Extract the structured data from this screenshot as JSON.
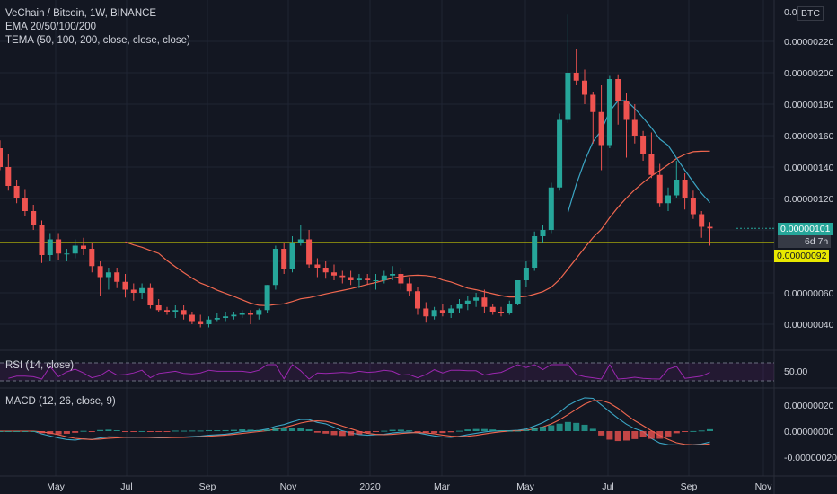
{
  "header": {
    "title": "VeChain / Bitcoin, 1W, BINANCE",
    "ema_study": "EMA 20/50/100/200",
    "tema_study": "TEMA (50, 100, 200, close, close, close)"
  },
  "price_axis": {
    "currency": "BTC",
    "top_label": "0.0",
    "ticks": [
      "0.00000220",
      "0.00000200",
      "0.00000180",
      "0.00000160",
      "0.00000140",
      "0.00000120",
      "0.00000060",
      "0.00000040"
    ],
    "current_price": "0.00000101",
    "countdown": "6d 7h",
    "line_price": "0.00000092"
  },
  "rsi": {
    "title": "RSI (14, close)",
    "level_label": "50.00"
  },
  "macd": {
    "title": "MACD (12, 26, close, 9)",
    "ticks": [
      "0.00000020",
      "0.00000000",
      "-0.00000020"
    ]
  },
  "time_axis": {
    "labels": [
      "May",
      "Jul",
      "Sep",
      "Nov",
      "2020",
      "Mar",
      "May",
      "Jul",
      "Sep",
      "Nov"
    ]
  },
  "colors": {
    "bg": "#131722",
    "up": "#26a69a",
    "down": "#ef5350",
    "horizontal_line": "#e8e800",
    "tema": "#f0674f",
    "ema": "#3ba5c4",
    "rsi": "#9c27b0",
    "macd_line": "#3ba5c4",
    "signal_line": "#f0674f"
  },
  "chart_data": {
    "type": "candlestick",
    "interval": "1W",
    "y_range": [
      2e-07,
      2.5e-06
    ],
    "candles": [
      [
        1.52,
        1.57,
        1.38,
        1.4
      ],
      [
        1.4,
        1.48,
        1.25,
        1.28
      ],
      [
        1.28,
        1.32,
        1.17,
        1.2
      ],
      [
        1.2,
        1.26,
        1.09,
        1.12
      ],
      [
        1.12,
        1.16,
        1.0,
        1.03
      ],
      [
        1.03,
        1.06,
        0.79,
        0.84
      ],
      [
        0.84,
        0.98,
        0.8,
        0.94
      ],
      [
        0.94,
        0.98,
        0.81,
        0.85
      ],
      [
        0.85,
        0.88,
        0.8,
        0.85
      ],
      [
        0.85,
        0.94,
        0.82,
        0.9
      ],
      [
        0.9,
        0.95,
        0.84,
        0.88
      ],
      [
        0.88,
        0.92,
        0.73,
        0.77
      ],
      [
        0.77,
        0.8,
        0.58,
        0.7
      ],
      [
        0.7,
        0.76,
        0.62,
        0.73
      ],
      [
        0.73,
        0.76,
        0.63,
        0.67
      ],
      [
        0.67,
        0.72,
        0.57,
        0.62
      ],
      [
        0.62,
        0.66,
        0.55,
        0.6
      ],
      [
        0.6,
        0.66,
        0.56,
        0.63
      ],
      [
        0.63,
        0.66,
        0.5,
        0.52
      ],
      [
        0.52,
        0.56,
        0.48,
        0.49
      ],
      [
        0.49,
        0.51,
        0.46,
        0.48
      ],
      [
        0.48,
        0.52,
        0.44,
        0.49
      ],
      [
        0.49,
        0.52,
        0.43,
        0.46
      ],
      [
        0.46,
        0.48,
        0.4,
        0.42
      ],
      [
        0.42,
        0.46,
        0.38,
        0.4
      ],
      [
        0.4,
        0.45,
        0.38,
        0.43
      ],
      [
        0.43,
        0.47,
        0.42,
        0.44
      ],
      [
        0.44,
        0.48,
        0.42,
        0.45
      ],
      [
        0.45,
        0.48,
        0.43,
        0.46
      ],
      [
        0.46,
        0.49,
        0.44,
        0.47
      ],
      [
        0.47,
        0.49,
        0.4,
        0.46
      ],
      [
        0.46,
        0.5,
        0.43,
        0.49
      ],
      [
        0.49,
        0.65,
        0.47,
        0.65
      ],
      [
        0.65,
        0.9,
        0.62,
        0.88
      ],
      [
        0.88,
        0.92,
        0.72,
        0.75
      ],
      [
        0.75,
        0.96,
        0.73,
        0.92
      ],
      [
        0.92,
        1.03,
        0.9,
        0.94
      ],
      [
        0.94,
        1.0,
        0.76,
        0.78
      ],
      [
        0.78,
        0.82,
        0.7,
        0.76
      ],
      [
        0.76,
        0.8,
        0.69,
        0.73
      ],
      [
        0.73,
        0.78,
        0.68,
        0.71
      ],
      [
        0.71,
        0.74,
        0.66,
        0.7
      ],
      [
        0.7,
        0.74,
        0.65,
        0.68
      ],
      [
        0.68,
        0.72,
        0.63,
        0.69
      ],
      [
        0.69,
        0.72,
        0.65,
        0.68
      ],
      [
        0.68,
        0.72,
        0.62,
        0.68
      ],
      [
        0.68,
        0.74,
        0.66,
        0.71
      ],
      [
        0.71,
        0.77,
        0.68,
        0.72
      ],
      [
        0.72,
        0.76,
        0.62,
        0.66
      ],
      [
        0.66,
        0.7,
        0.58,
        0.61
      ],
      [
        0.61,
        0.64,
        0.46,
        0.5
      ],
      [
        0.5,
        0.54,
        0.41,
        0.45
      ],
      [
        0.45,
        0.51,
        0.43,
        0.49
      ],
      [
        0.49,
        0.53,
        0.45,
        0.47
      ],
      [
        0.47,
        0.52,
        0.44,
        0.5
      ],
      [
        0.5,
        0.56,
        0.47,
        0.53
      ],
      [
        0.53,
        0.58,
        0.49,
        0.55
      ],
      [
        0.55,
        0.6,
        0.51,
        0.57
      ],
      [
        0.57,
        0.62,
        0.47,
        0.51
      ],
      [
        0.51,
        0.53,
        0.46,
        0.48
      ],
      [
        0.48,
        0.51,
        0.45,
        0.47
      ],
      [
        0.47,
        0.55,
        0.46,
        0.53
      ],
      [
        0.53,
        0.68,
        0.52,
        0.68
      ],
      [
        0.68,
        0.8,
        0.64,
        0.76
      ],
      [
        0.76,
        0.99,
        0.74,
        0.96
      ],
      [
        0.96,
        1.03,
        0.92,
        1.0
      ],
      [
        1.0,
        1.3,
        0.98,
        1.27
      ],
      [
        1.27,
        1.74,
        1.25,
        1.7
      ],
      [
        1.7,
        2.37,
        1.68,
        2.0
      ],
      [
        2.0,
        2.15,
        1.92,
        1.95
      ],
      [
        1.95,
        2.02,
        1.8,
        1.86
      ],
      [
        1.86,
        1.88,
        1.55,
        1.75
      ],
      [
        1.75,
        1.92,
        1.38,
        1.54
      ],
      [
        1.54,
        1.98,
        1.52,
        1.96
      ],
      [
        1.96,
        1.99,
        1.67,
        1.82
      ],
      [
        1.82,
        1.87,
        1.46,
        1.7
      ],
      [
        1.7,
        1.8,
        1.55,
        1.6
      ],
      [
        1.6,
        1.63,
        1.44,
        1.48
      ],
      [
        1.48,
        1.62,
        1.33,
        1.35
      ],
      [
        1.35,
        1.42,
        1.15,
        1.17
      ],
      [
        1.17,
        1.27,
        1.12,
        1.22
      ],
      [
        1.22,
        1.44,
        1.2,
        1.32
      ],
      [
        1.32,
        1.36,
        1.13,
        1.2
      ],
      [
        1.2,
        1.25,
        1.07,
        1.1
      ],
      [
        1.1,
        1.12,
        0.95,
        1.02
      ],
      [
        1.02,
        1.05,
        0.9,
        1.01
      ]
    ]
  }
}
